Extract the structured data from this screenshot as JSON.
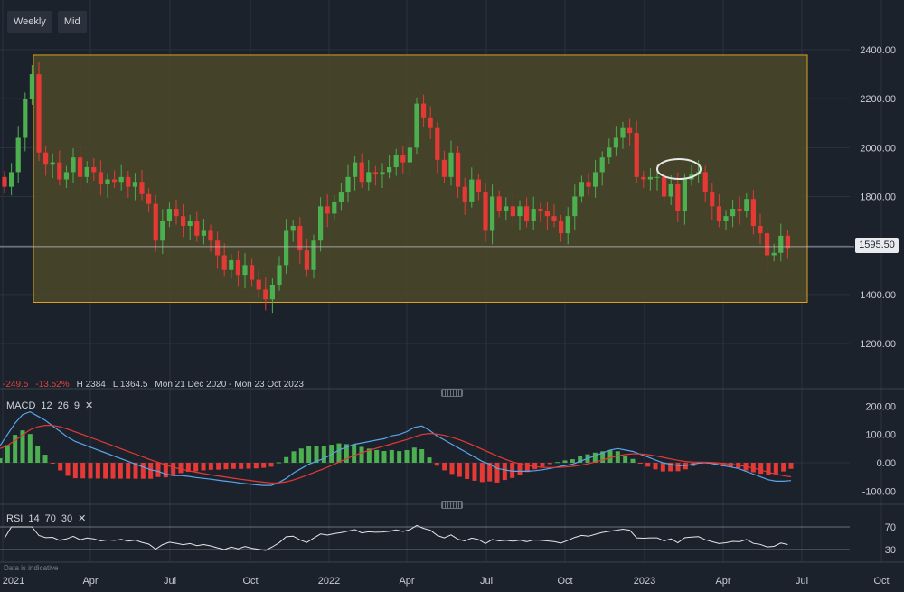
{
  "toolbar": {
    "interval": "Weekly",
    "price_type": "Mid"
  },
  "stats": {
    "change": "-249.5",
    "change_pct": "-13.52%",
    "high": "H 2384",
    "low": "L 1364.5",
    "range": "Mon 21 Dec 2020 - Mon 23 Oct 2023"
  },
  "current_price": "1595.50",
  "macd_label": {
    "name": "MACD",
    "p1": "12",
    "p2": "26",
    "p3": "9"
  },
  "rsi_label": {
    "name": "RSI",
    "p1": "14",
    "p2": "70",
    "p3": "30"
  },
  "footnote": "Data is indicative",
  "colors": {
    "background": "#1c222c",
    "up": "#4caf50",
    "down": "#e53935",
    "channel_fill": "#4b4829",
    "channel_border": "#e0a020",
    "macd_line": "#5aa5ea",
    "signal_line": "#e53935",
    "rsi_line": "#e6e6e6"
  },
  "chart_data": [
    {
      "type": "candlestick",
      "x_ticks": [
        "2021",
        "Apr",
        "Jul",
        "Oct",
        "2022",
        "Apr",
        "Jul",
        "Oct",
        "2023",
        "Apr",
        "Jul",
        "Oct"
      ],
      "y_ticks": [
        "2400.00",
        "2200.00",
        "2000.00",
        "1800.00",
        "1600.00",
        "1400.00",
        "1200.00"
      ],
      "ylim": [
        1060,
        2520
      ],
      "channel": {
        "top": 2378,
        "bottom": 1368
      },
      "last_price": 1595.5,
      "closes": [
        1840,
        1900,
        2040,
        2200,
        2300,
        1980,
        1930,
        1940,
        1870,
        1900,
        1960,
        1880,
        1920,
        1900,
        1850,
        1870,
        1860,
        1880,
        1840,
        1860,
        1810,
        1770,
        1620,
        1700,
        1750,
        1720,
        1680,
        1700,
        1640,
        1660,
        1620,
        1560,
        1500,
        1540,
        1480,
        1520,
        1460,
        1420,
        1380,
        1440,
        1520,
        1660,
        1680,
        1580,
        1500,
        1620,
        1760,
        1730,
        1780,
        1820,
        1880,
        1940,
        1860,
        1900,
        1890,
        1900,
        1920,
        1970,
        1940,
        2000,
        2180,
        2120,
        2080,
        1950,
        1880,
        1980,
        1840,
        1780,
        1870,
        1820,
        1660,
        1800,
        1740,
        1760,
        1720,
        1760,
        1700,
        1750,
        1740,
        1720,
        1700,
        1650,
        1720,
        1800,
        1860,
        1840,
        1900,
        1960,
        2000,
        2040,
        2080,
        2060,
        1880,
        1870,
        1880,
        1880,
        1800,
        1850,
        1740,
        1870,
        1890,
        1900,
        1820,
        1760,
        1700,
        1720,
        1750,
        1740,
        1790,
        1680,
        1650,
        1560,
        1570,
        1640,
        1590
      ]
    },
    {
      "type": "macd",
      "y_ticks": [
        "200.00",
        "100.00",
        "0.00",
        "-100.00"
      ],
      "ylim": [
        -125,
        215
      ],
      "macd": [
        60,
        100,
        140,
        170,
        180,
        165,
        150,
        130,
        110,
        90,
        75,
        65,
        55,
        45,
        35,
        25,
        15,
        5,
        -5,
        -15,
        -25,
        -30,
        -40,
        -45,
        -45,
        -48,
        -52,
        -55,
        -58,
        -62,
        -65,
        -68,
        -72,
        -75,
        -78,
        -80,
        -80,
        -70,
        -55,
        -35,
        -20,
        -5,
        5,
        15,
        30,
        45,
        55,
        65,
        70,
        75,
        80,
        85,
        95,
        100,
        110,
        125,
        130,
        115,
        95,
        80,
        65,
        50,
        35,
        20,
        5,
        -5,
        -20,
        -25,
        -30,
        -30,
        -30,
        -28,
        -25,
        -20,
        -15,
        -10,
        -5,
        5,
        15,
        25,
        35,
        45,
        50,
        45,
        40,
        30,
        20,
        10,
        0,
        -5,
        -10,
        -10,
        -5,
        0,
        0,
        -5,
        -10,
        -15,
        -20,
        -30,
        -40,
        -50,
        -60,
        -65,
        -65,
        -63
      ]
    },
    {
      "type": "rsi",
      "y_ticks": [
        "70",
        "30"
      ],
      "ylim": [
        20,
        80
      ]
    }
  ]
}
